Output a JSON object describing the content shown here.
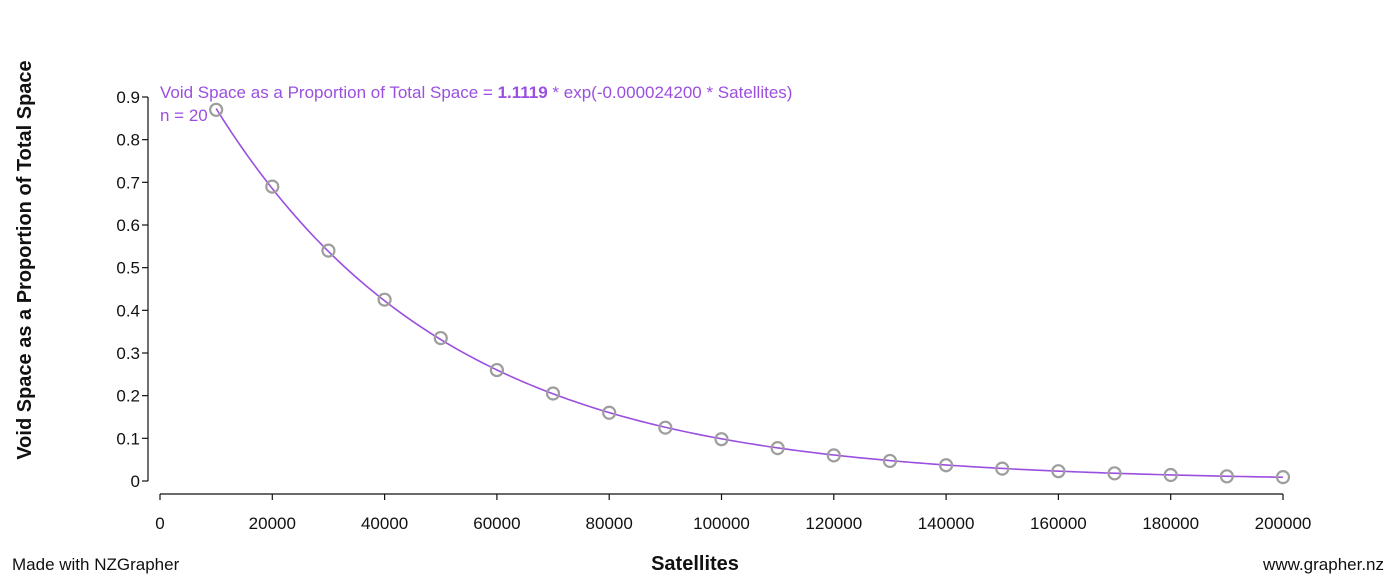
{
  "chart_data": {
    "type": "scatter",
    "xlabel": "Satellites",
    "ylabel": "Void Space as a Proportion of Total Space",
    "xlim": [
      0,
      200000
    ],
    "ylim": [
      0,
      0.9
    ],
    "x_ticks": [
      0,
      20000,
      40000,
      60000,
      80000,
      100000,
      120000,
      140000,
      160000,
      180000,
      200000
    ],
    "x_tick_labels": [
      "0",
      "20000",
      "40000",
      "60000",
      "80000",
      "100000",
      "120000",
      "140000",
      "160000",
      "180000",
      "200000"
    ],
    "y_ticks": [
      0,
      0.1,
      0.2,
      0.3,
      0.4,
      0.5,
      0.6,
      0.7,
      0.8,
      0.9
    ],
    "y_tick_labels": [
      "0",
      "0.1",
      "0.2",
      "0.3",
      "0.4",
      "0.5",
      "0.6",
      "0.7",
      "0.8",
      "0.9"
    ],
    "grid": false,
    "points": {
      "x": [
        10000,
        20000,
        30000,
        40000,
        50000,
        60000,
        70000,
        80000,
        90000,
        100000,
        110000,
        120000,
        130000,
        140000,
        150000,
        160000,
        170000,
        180000,
        190000,
        200000
      ],
      "y": [
        0.87,
        0.69,
        0.54,
        0.425,
        0.335,
        0.26,
        0.205,
        0.16,
        0.125,
        0.098,
        0.077,
        0.06,
        0.047,
        0.037,
        0.029,
        0.023,
        0.018,
        0.014,
        0.011,
        0.009
      ]
    },
    "fit": {
      "type": "exponential",
      "a": 1.1119,
      "b": -2.42e-05,
      "x_range": [
        10000,
        200000
      ],
      "color": "#9b4fe0"
    },
    "annotation": {
      "equation_prefix": "Void Space as a Proportion of Total Space = ",
      "equation_coef": "1.1119",
      "equation_suffix": " * exp(-0.000024200 * Satellites)",
      "n_label": "n = 20"
    },
    "point_color": "#9e9e9e"
  },
  "footer": {
    "left": "Made with NZGrapher",
    "right": "www.grapher.nz"
  }
}
